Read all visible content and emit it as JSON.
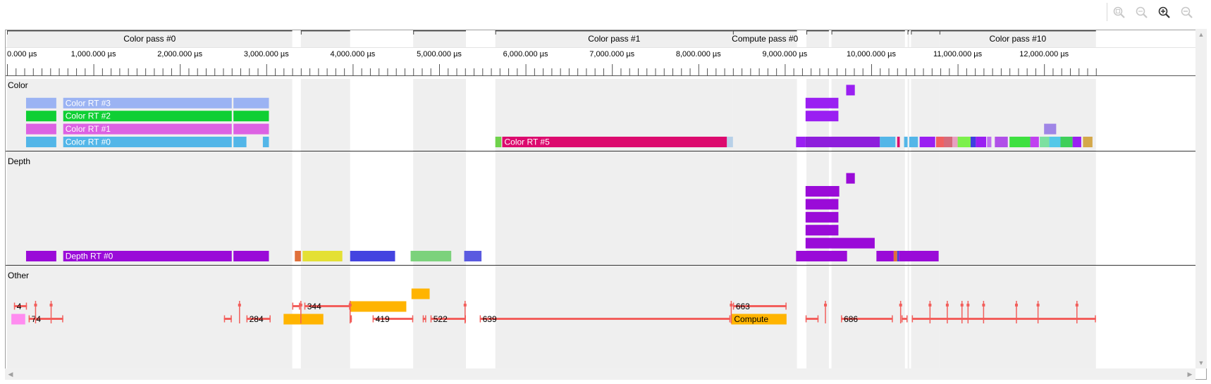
{
  "toolbar": {
    "buttons": [
      {
        "name": "zoom-to-selection-button",
        "icon": "zoom-selection-icon",
        "enabled": false
      },
      {
        "name": "zoom-reset-button",
        "icon": "zoom-reset-icon",
        "enabled": false
      },
      {
        "name": "zoom-in-button",
        "icon": "zoom-in-icon",
        "enabled": true
      },
      {
        "name": "zoom-out-button",
        "icon": "zoom-out-icon",
        "enabled": false
      }
    ]
  },
  "ruler": {
    "ticks": [
      "0.000 µs",
      "1,000.000 µs",
      "2,000.000 µs",
      "3,000.000 µs",
      "4,000.000 µs",
      "5,000.000 µs",
      "6,000.000 µs",
      "7,000.000 µs",
      "8,000.000 µs",
      "9,000.000 µs",
      "10,000.000 µs",
      "11,000.000 µs",
      "12,000.000 µs"
    ]
  },
  "passes": [
    {
      "label": "Color pass #0",
      "start": 0,
      "end": 3300
    },
    {
      "label": "",
      "start": 3400,
      "end": 3970
    },
    {
      "label": "",
      "start": 4700,
      "end": 5310
    },
    {
      "label": "Color pass #1",
      "start": 5650,
      "end": 8400
    },
    {
      "label": "Compute pass #0",
      "start": 8400,
      "end": 9140
    },
    {
      "label": "",
      "start": 9250,
      "end": 9510
    },
    {
      "label": "",
      "start": 9540,
      "end": 10390
    },
    {
      "label": "",
      "start": 10420,
      "end": 10440
    },
    {
      "label": "",
      "start": 10460,
      "end": 10790
    },
    {
      "label": "Color pass #10",
      "start": 10790,
      "end": 12600
    }
  ],
  "lanes": {
    "color": "Color",
    "depth": "Depth",
    "other": "Other"
  },
  "color_bars": [
    {
      "row": 3,
      "start": 220,
      "end": 570,
      "color": "#9bb3f3",
      "label": ""
    },
    {
      "row": 3,
      "start": 650,
      "end": 2600,
      "color": "#9bb3f3",
      "label": "Color RT #3"
    },
    {
      "row": 3,
      "start": 2620,
      "end": 3030,
      "color": "#9bb3f3",
      "label": ""
    },
    {
      "row": 2,
      "start": 220,
      "end": 570,
      "color": "#0fcf34",
      "label": ""
    },
    {
      "row": 2,
      "start": 650,
      "end": 2600,
      "color": "#0fcf34",
      "label": "Color RT #2"
    },
    {
      "row": 2,
      "start": 2620,
      "end": 3030,
      "color": "#0fcf34",
      "label": ""
    },
    {
      "row": 1,
      "start": 220,
      "end": 570,
      "color": "#dc62e3",
      "label": ""
    },
    {
      "row": 1,
      "start": 650,
      "end": 2600,
      "color": "#dc62e3",
      "label": "Color RT #1"
    },
    {
      "row": 1,
      "start": 2620,
      "end": 3030,
      "color": "#dc62e3",
      "label": ""
    },
    {
      "row": 0,
      "start": 220,
      "end": 570,
      "color": "#53b6e8",
      "label": ""
    },
    {
      "row": 0,
      "start": 650,
      "end": 2600,
      "color": "#53b6e8",
      "label": "Color RT #0"
    },
    {
      "row": 0,
      "start": 2620,
      "end": 2770,
      "color": "#53b6e8",
      "label": ""
    },
    {
      "row": 0,
      "start": 2960,
      "end": 3030,
      "color": "#53b6e8",
      "label": ""
    },
    {
      "row": 0,
      "start": 5650,
      "end": 5720,
      "color": "#6fd24b",
      "label": ""
    },
    {
      "row": 0,
      "start": 5730,
      "end": 8330,
      "color": "#dc0a6e",
      "label": "Color RT #5"
    },
    {
      "row": 0,
      "start": 8330,
      "end": 8400,
      "color": "#b8d0e8",
      "label": ""
    },
    {
      "row": 4,
      "start": 9710,
      "end": 9810,
      "color": "#9a1ff2",
      "label": ""
    },
    {
      "row": 3,
      "start": 9240,
      "end": 9620,
      "color": "#9a1ff2",
      "label": ""
    },
    {
      "row": 2,
      "start": 9240,
      "end": 9620,
      "color": "#9a1ff2",
      "label": ""
    },
    {
      "row": 1,
      "start": 12000,
      "end": 12140,
      "color": "#9f85e6",
      "label": ""
    },
    {
      "row": 0,
      "start": 9130,
      "end": 9240,
      "color": "#9a1ff2",
      "label": ""
    },
    {
      "row": 0,
      "start": 9240,
      "end": 10100,
      "color": "#8e1edc",
      "label": ""
    },
    {
      "row": 0,
      "start": 10100,
      "end": 10280,
      "color": "#53b6e8",
      "label": ""
    },
    {
      "row": 0,
      "start": 10300,
      "end": 10330,
      "color": "#dc0a6e",
      "label": ""
    },
    {
      "row": 0,
      "start": 10380,
      "end": 10420,
      "color": "#53b6e8",
      "label": ""
    },
    {
      "row": 0,
      "start": 10440,
      "end": 10540,
      "color": "#53b6e8",
      "label": ""
    },
    {
      "row": 0,
      "start": 10560,
      "end": 10740,
      "color": "#9a1ff2",
      "label": ""
    },
    {
      "row": 0,
      "start": 10750,
      "end": 10840,
      "color": "#f06060",
      "label": ""
    },
    {
      "row": 0,
      "start": 10840,
      "end": 10940,
      "color": "#d66a7a",
      "label": ""
    },
    {
      "row": 0,
      "start": 10940,
      "end": 11000,
      "color": "#e8a0c0",
      "label": ""
    },
    {
      "row": 0,
      "start": 11000,
      "end": 11150,
      "color": "#7cf04c",
      "label": ""
    },
    {
      "row": 0,
      "start": 11150,
      "end": 11210,
      "color": "#3f3fe0",
      "label": ""
    },
    {
      "row": 0,
      "start": 11210,
      "end": 11330,
      "color": "#9a1ff2",
      "label": ""
    },
    {
      "row": 0,
      "start": 11340,
      "end": 11390,
      "color": "#c070f0",
      "label": ""
    },
    {
      "row": 0,
      "start": 11430,
      "end": 11580,
      "color": "#b050e8",
      "label": ""
    },
    {
      "row": 0,
      "start": 11600,
      "end": 11840,
      "color": "#3ee040",
      "label": ""
    },
    {
      "row": 0,
      "start": 11840,
      "end": 11940,
      "color": "#c040f0",
      "label": ""
    },
    {
      "row": 0,
      "start": 11950,
      "end": 12060,
      "color": "#7ce0a0",
      "label": ""
    },
    {
      "row": 0,
      "start": 12060,
      "end": 12190,
      "color": "#53c8e8",
      "label": ""
    },
    {
      "row": 0,
      "start": 12190,
      "end": 12330,
      "color": "#3ecf5a",
      "label": ""
    },
    {
      "row": 0,
      "start": 12330,
      "end": 12430,
      "color": "#9a1ff2",
      "label": ""
    },
    {
      "row": 0,
      "start": 12450,
      "end": 12560,
      "color": "#d4a84a",
      "label": ""
    }
  ],
  "depth_bars": [
    {
      "row": 6,
      "start": 9710,
      "end": 9810,
      "color": "#9a0bd8",
      "label": ""
    },
    {
      "row": 5,
      "start": 9240,
      "end": 9630,
      "color": "#9a0bd8",
      "label": ""
    },
    {
      "row": 4,
      "start": 9240,
      "end": 9620,
      "color": "#9a0bd8",
      "label": ""
    },
    {
      "row": 3,
      "start": 9240,
      "end": 9620,
      "color": "#9a0bd8",
      "label": ""
    },
    {
      "row": 2,
      "start": 9240,
      "end": 9620,
      "color": "#9a0bd8",
      "label": ""
    },
    {
      "row": 1,
      "start": 9240,
      "end": 10040,
      "color": "#9a0bd8",
      "label": ""
    },
    {
      "row": 0,
      "start": 220,
      "end": 570,
      "color": "#9a0bd8",
      "label": ""
    },
    {
      "row": 0,
      "start": 650,
      "end": 2600,
      "color": "#9a0bd8",
      "label": "Depth RT #0"
    },
    {
      "row": 0,
      "start": 2620,
      "end": 3030,
      "color": "#9a0bd8",
      "label": ""
    },
    {
      "row": 0,
      "start": 3330,
      "end": 3400,
      "color": "#e0703a",
      "label": ""
    },
    {
      "row": 0,
      "start": 3420,
      "end": 3880,
      "color": "#e4e034",
      "label": ""
    },
    {
      "row": 0,
      "start": 3970,
      "end": 4490,
      "color": "#4444e0",
      "label": ""
    },
    {
      "row": 0,
      "start": 4670,
      "end": 5140,
      "color": "#7cd27c",
      "label": ""
    },
    {
      "row": 0,
      "start": 5290,
      "end": 5490,
      "color": "#5a5ae0",
      "label": ""
    },
    {
      "row": 0,
      "start": 9130,
      "end": 9720,
      "color": "#9a0bd8",
      "label": ""
    },
    {
      "row": 0,
      "start": 10060,
      "end": 10260,
      "color": "#9a0bd8",
      "label": ""
    },
    {
      "row": 0,
      "start": 10260,
      "end": 10300,
      "color": "#e0703a",
      "label": ""
    },
    {
      "row": 0,
      "start": 10300,
      "end": 10320,
      "color": "#3f3fe0",
      "label": ""
    },
    {
      "row": 0,
      "start": 10320,
      "end": 10780,
      "color": "#9a0bd8",
      "label": ""
    }
  ],
  "other_events": [
    {
      "row": 0,
      "start": 50,
      "end": 210,
      "label": "",
      "fill": "#ff8cf0"
    },
    {
      "row": 0,
      "start": 250,
      "end": 650,
      "label": "74",
      "fill": ""
    },
    {
      "row": 0,
      "start": 2510,
      "end": 2600,
      "label": "",
      "fill": ""
    },
    {
      "row": 0,
      "start": 2770,
      "end": 3050,
      "label": "284",
      "fill": ""
    },
    {
      "row": 0,
      "start": 3200,
      "end": 3660,
      "label": "",
      "fill": "#ffb400"
    },
    {
      "row": 0,
      "start": 3970,
      "end": 3990,
      "label": "",
      "fill": ""
    },
    {
      "row": 0,
      "start": 4230,
      "end": 4700,
      "label": "419",
      "fill": ""
    },
    {
      "row": 0,
      "start": 4810,
      "end": 4850,
      "label": "",
      "fill": ""
    },
    {
      "row": 0,
      "start": 4900,
      "end": 5310,
      "label": "522",
      "fill": ""
    },
    {
      "row": 0,
      "start": 5470,
      "end": 8370,
      "label": "639",
      "fill": ""
    },
    {
      "row": 0,
      "start": 8380,
      "end": 9020,
      "label": "Compute",
      "fill": "#ffb400"
    },
    {
      "row": 0,
      "start": 9240,
      "end": 9390,
      "label": "",
      "fill": ""
    },
    {
      "row": 0,
      "start": 9650,
      "end": 10250,
      "label": "686",
      "fill": ""
    },
    {
      "row": 0,
      "start": 10350,
      "end": 10420,
      "label": "",
      "fill": ""
    },
    {
      "row": 0,
      "start": 10470,
      "end": 12600,
      "label": "",
      "fill": ""
    },
    {
      "row": 1,
      "start": 80,
      "end": 230,
      "label": "4",
      "fill": ""
    },
    {
      "row": 1,
      "start": 3300,
      "end": 3390,
      "label": "",
      "fill": ""
    },
    {
      "row": 1,
      "start": 3440,
      "end": 3970,
      "label": "344",
      "fill": ""
    },
    {
      "row": 1,
      "start": 3970,
      "end": 4620,
      "label": "",
      "fill": "#ffb400"
    },
    {
      "row": 1,
      "start": 8400,
      "end": 9020,
      "label": "663",
      "fill": ""
    },
    {
      "row": 2,
      "start": 4680,
      "end": 4890,
      "label": "",
      "fill": "#ffb400"
    }
  ],
  "other_markers": [
    3400,
    3970,
    5300,
    8380,
    10340,
    11930,
    330,
    510,
    2690,
    9470,
    10680,
    10880,
    11050,
    11120,
    11300,
    11680,
    12380
  ]
}
